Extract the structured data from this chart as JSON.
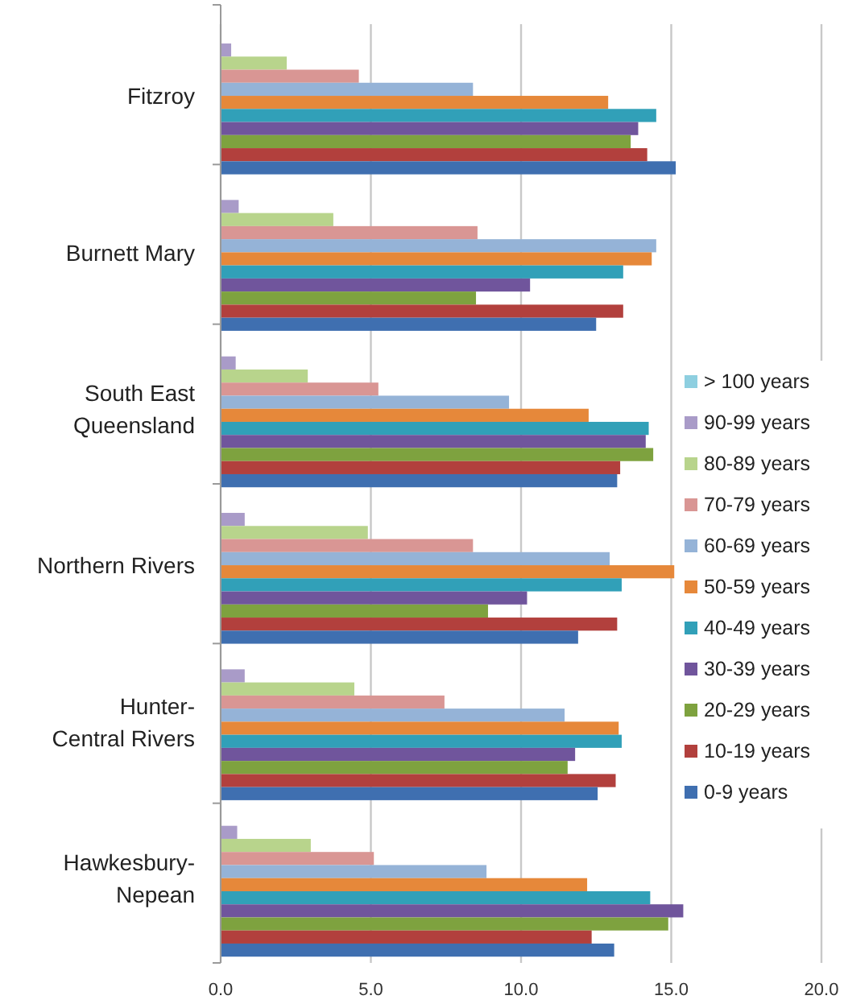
{
  "chart_data": {
    "type": "bar",
    "orientation": "horizontal",
    "categories": [
      "Fitzroy",
      "Burnett Mary",
      "South East Queensland",
      "Northern Rivers",
      "Hunter-Central Rivers",
      "Hawkesbury-Nepean"
    ],
    "series": [
      {
        "name": "> 100 years",
        "color": "#8ecfe0",
        "values": [
          null,
          null,
          null,
          null,
          null,
          null
        ]
      },
      {
        "name": "90-99 years",
        "color": "#a99bc8",
        "values": [
          0.35,
          0.6,
          0.5,
          0.8,
          0.8,
          0.55
        ]
      },
      {
        "name": "80-89 years",
        "color": "#b8d48c",
        "values": [
          2.2,
          3.75,
          2.9,
          4.9,
          4.45,
          3.0
        ]
      },
      {
        "name": "70-79 years",
        "color": "#d99694",
        "values": [
          4.6,
          8.55,
          5.25,
          8.4,
          7.45,
          5.1
        ]
      },
      {
        "name": "60-69 years",
        "color": "#95b3d7",
        "values": [
          8.4,
          14.5,
          9.6,
          12.95,
          11.45,
          8.85
        ]
      },
      {
        "name": "50-59 years",
        "color": "#e6883a",
        "values": [
          12.9,
          14.35,
          12.25,
          15.1,
          13.25,
          12.2
        ]
      },
      {
        "name": "40-49 years",
        "color": "#31a0b8",
        "values": [
          14.5,
          13.4,
          14.25,
          13.35,
          13.35,
          14.3
        ]
      },
      {
        "name": "30-39 years",
        "color": "#70559c",
        "values": [
          13.9,
          10.3,
          14.15,
          10.2,
          11.8,
          15.4
        ]
      },
      {
        "name": "20-29 years",
        "color": "#7ea23f",
        "values": [
          13.65,
          8.5,
          14.4,
          8.9,
          11.55,
          14.9
        ]
      },
      {
        "name": "10-19 years",
        "color": "#b2403d",
        "values": [
          14.2,
          13.4,
          13.3,
          13.2,
          13.15,
          12.35
        ]
      },
      {
        "name": "0-9 years",
        "color": "#3f6fb0",
        "values": [
          15.15,
          12.5,
          13.2,
          11.9,
          12.55,
          13.1
        ]
      }
    ],
    "xlim": [
      0,
      20
    ],
    "xticks": [
      {
        "value": 0,
        "label": "0.0"
      },
      {
        "value": 5,
        "label": "5.0"
      },
      {
        "value": 10,
        "label": "10.0"
      },
      {
        "value": 15,
        "label": "15.0"
      },
      {
        "value": 20,
        "label": "20.0"
      }
    ],
    "grid": "x",
    "legend": "right"
  }
}
